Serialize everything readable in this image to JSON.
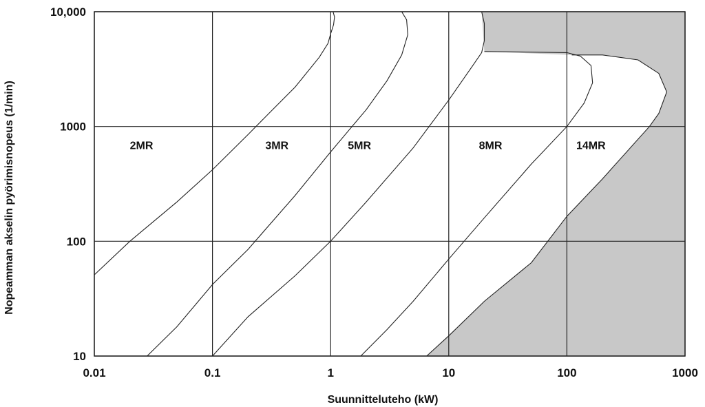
{
  "chart_data": {
    "type": "line",
    "title": "",
    "xlabel": "Suunnitteluteho (kW)",
    "ylabel": "Nopeamman akselin pyörimisnopeus (1/min)",
    "x_scale": "log",
    "y_scale": "log",
    "xlim": [
      0.01,
      1000
    ],
    "ylim": [
      10,
      10000
    ],
    "x_ticks": [
      "0.01",
      "0.1",
      "1",
      "10",
      "100",
      "1000"
    ],
    "y_ticks": [
      "10",
      "100",
      "1000",
      "10,000"
    ],
    "grid": true,
    "shaded_region": "beyond 14MR limit (right side)",
    "shade_color": "#c8c8c8",
    "series": [
      {
        "name": "2MR",
        "label": "2MR",
        "x": [
          0.01,
          0.02,
          0.05,
          0.1,
          0.2,
          0.3,
          0.5,
          0.8,
          0.95,
          1.0,
          1.06,
          1.08,
          1.05
        ],
        "y": [
          51,
          100,
          220,
          420,
          850,
          1300,
          2200,
          4000,
          5300,
          6400,
          7700,
          9000,
          10000
        ]
      },
      {
        "name": "3MR",
        "label": "3MR",
        "x": [
          0.028,
          0.05,
          0.1,
          0.2,
          0.5,
          1.0,
          2.0,
          3.0,
          4.0,
          4.5,
          4.4,
          4.0
        ],
        "y": [
          10,
          18,
          42,
          85,
          250,
          600,
          1400,
          2500,
          4200,
          6300,
          8500,
          10000
        ]
      },
      {
        "name": "5MR",
        "label": "5MR",
        "x": [
          0.1,
          0.2,
          0.5,
          1.0,
          2.0,
          5.0,
          10,
          16,
          19,
          20,
          20,
          19
        ],
        "y": [
          10,
          22,
          50,
          100,
          220,
          650,
          1700,
          3400,
          4400,
          5600,
          7900,
          10000
        ]
      },
      {
        "name": "8MR",
        "label": "8MR",
        "x": [
          1.8,
          3,
          5,
          10,
          20,
          50,
          100,
          140,
          165,
          160,
          130,
          100,
          20
        ],
        "y": [
          10,
          17,
          30,
          70,
          160,
          470,
          1000,
          1600,
          2400,
          3400,
          4100,
          4400,
          4500
        ]
      },
      {
        "name": "14MR",
        "label": "14MR",
        "x": [
          6.5,
          10,
          20,
          50,
          100,
          200,
          500,
          600,
          700,
          600,
          400,
          200,
          110
        ],
        "y": [
          10,
          15,
          30,
          65,
          165,
          350,
          1000,
          1300,
          2000,
          2900,
          3800,
          4200,
          4200
        ]
      }
    ]
  }
}
